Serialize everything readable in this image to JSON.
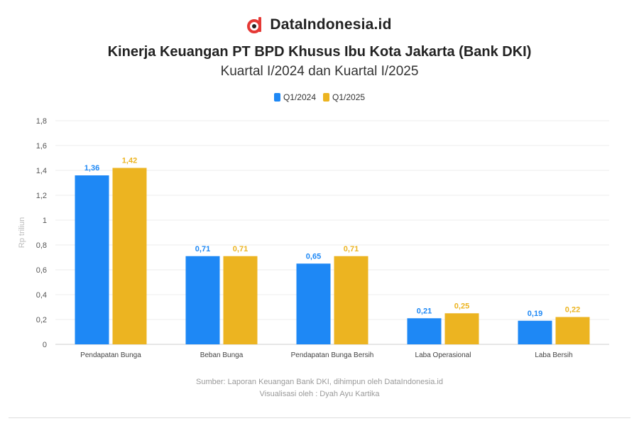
{
  "header": {
    "brand": "DataIndonesia.id",
    "title": "Kinerja Keuangan PT BPD Khusus Ibu Kota Jakarta (Bank DKI)",
    "subtitle": "Kuartal I/2024 dan Kuartal I/2025"
  },
  "footer": {
    "source": "Sumber: Laporan Keuangan Bank DKI, dihimpun oleh DataIndonesia.id",
    "credit": "Visualisasi oleh : Dyah Ayu Kartika"
  },
  "colors": {
    "q1_2024": "#1e88f5",
    "q1_2025": "#ecb421",
    "logo": "#e53935"
  },
  "chart_data": {
    "type": "bar",
    "title": "Kinerja Keuangan PT BPD Khusus Ibu Kota Jakarta (Bank DKI)",
    "subtitle": "Kuartal I/2024 dan Kuartal I/2025",
    "ylabel": "Rp triliun",
    "xlabel": "",
    "ylim": [
      0,
      1.8
    ],
    "yticks": [
      0,
      0.2,
      0.4,
      0.6,
      0.8,
      1,
      1.2,
      1.4,
      1.6,
      1.8
    ],
    "ytick_labels": [
      "0",
      "0,2",
      "0,4",
      "0,6",
      "0,8",
      "1",
      "1,2",
      "1,4",
      "1,6",
      "1,8"
    ],
    "grid": true,
    "legend": "top-center",
    "categories": [
      "Pendapatan Bunga",
      "Beban Bunga",
      "Pendapatan Bunga Bersih",
      "Laba Operasional",
      "Laba Bersih"
    ],
    "series": [
      {
        "name": "Q1/2024",
        "values": [
          1.36,
          0.71,
          0.65,
          0.21,
          0.19
        ],
        "labels": [
          "1,36",
          "0,71",
          "0,65",
          "0,21",
          "0,19"
        ]
      },
      {
        "name": "Q1/2025",
        "values": [
          1.42,
          0.71,
          0.71,
          0.25,
          0.22
        ],
        "labels": [
          "1,42",
          "0,71",
          "0,71",
          "0,25",
          "0,22"
        ]
      }
    ]
  }
}
